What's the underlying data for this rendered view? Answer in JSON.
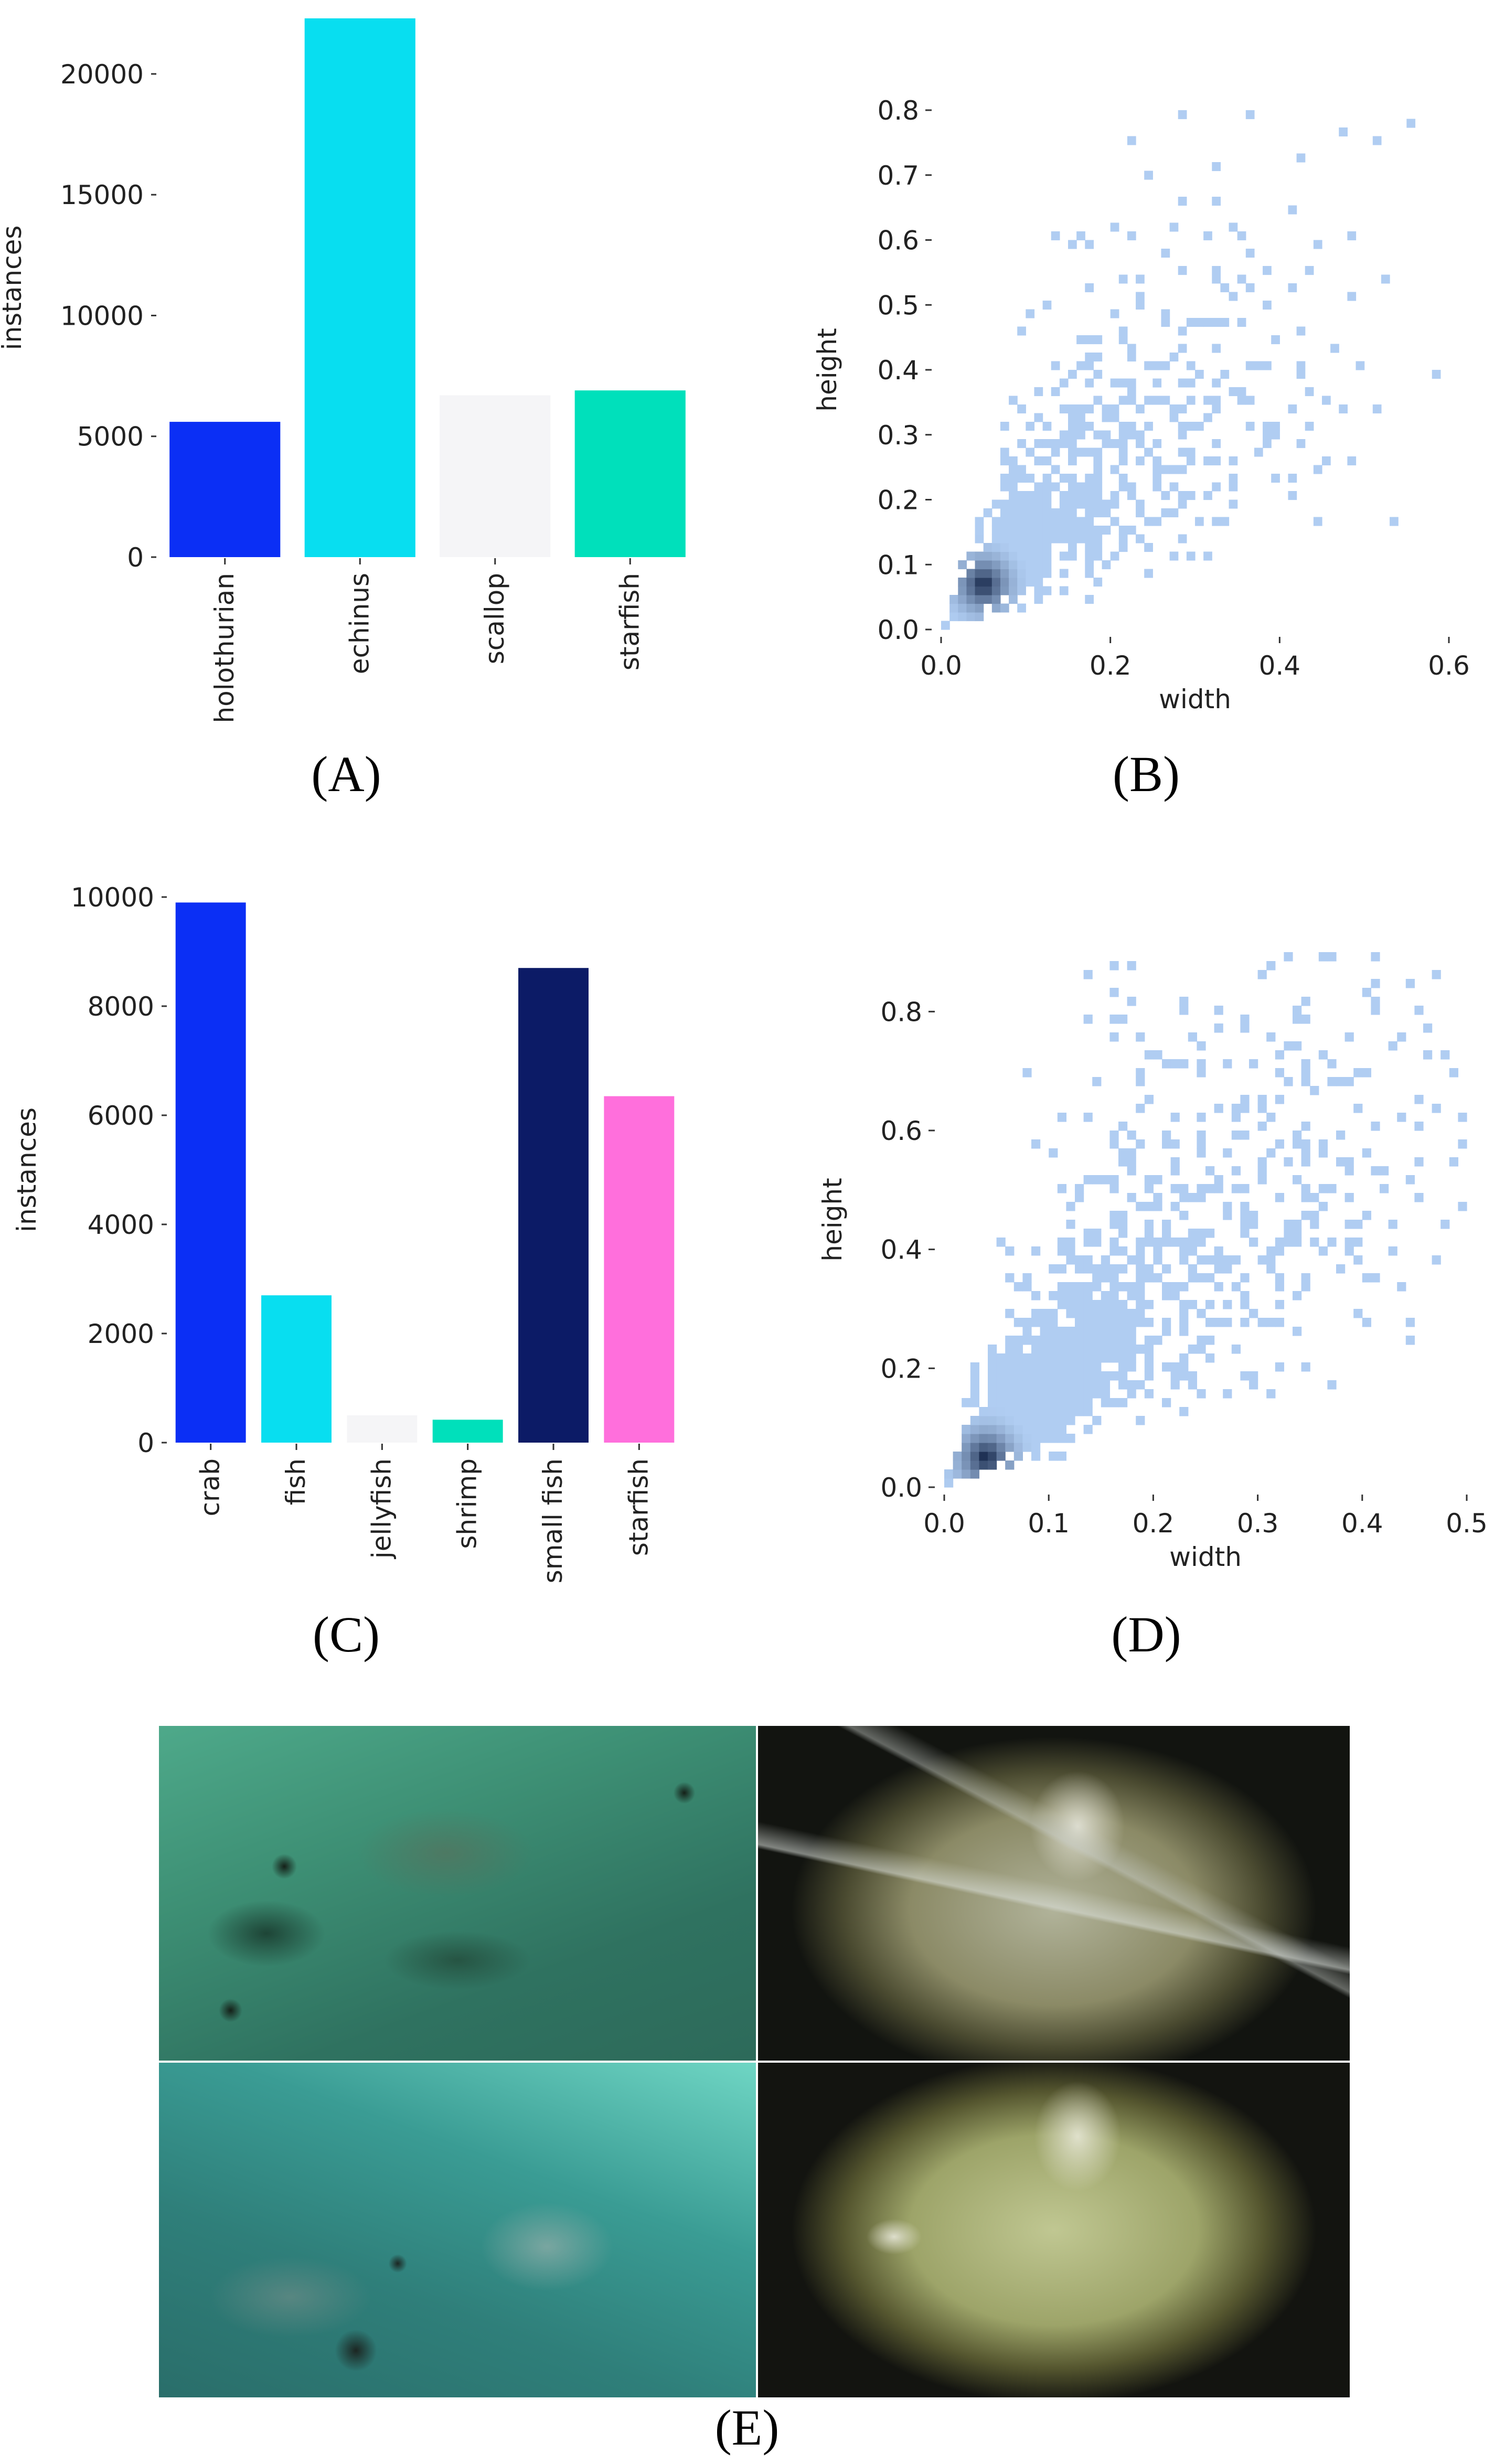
{
  "panel_labels": {
    "a": "(A)",
    "b": "(B)",
    "c": "(C)",
    "d": "(D)",
    "e": "(E)"
  },
  "chart_data": [
    {
      "id": "A",
      "type": "bar",
      "categories": [
        "holothurian",
        "echinus",
        "scallop",
        "starfish"
      ],
      "values": [
        5600,
        22300,
        6700,
        6900
      ],
      "colors": [
        "#0b2ff5",
        "#08def0",
        "#f5f5f7",
        "#00e0bb"
      ],
      "ylabel": "instances",
      "xlabel": "",
      "yticks": [
        0,
        5000,
        10000,
        15000,
        20000
      ],
      "ylim": [
        0,
        22300
      ],
      "grid": false
    },
    {
      "id": "B",
      "type": "heatmap",
      "xlabel": "width",
      "ylabel": "height",
      "xticks": [
        0.0,
        0.2,
        0.4,
        0.6
      ],
      "yticks": [
        0.0,
        0.1,
        0.2,
        0.3,
        0.4,
        0.5,
        0.6,
        0.7,
        0.8
      ],
      "xlim": [
        0.0,
        0.6
      ],
      "ylim": [
        0.0,
        0.8
      ],
      "colormap": [
        "#b0cdf2",
        "#0d1e40"
      ],
      "dense_core": {
        "width": 0.05,
        "height": 0.07
      },
      "grid": false
    },
    {
      "id": "C",
      "type": "bar",
      "categories": [
        "crab",
        "fish",
        "jellyfish",
        "shrimp",
        "small fish",
        "starfish"
      ],
      "values": [
        9900,
        2700,
        500,
        420,
        8700,
        6350
      ],
      "colors": [
        "#0b2ff5",
        "#08def0",
        "#f5f5f7",
        "#00e0bb",
        "#0c1b66",
        "#ff6fdc"
      ],
      "ylabel": "instances",
      "xlabel": "",
      "yticks": [
        0,
        2000,
        4000,
        6000,
        8000,
        10000
      ],
      "ylim": [
        0,
        10000
      ],
      "grid": false
    },
    {
      "id": "D",
      "type": "heatmap",
      "xlabel": "width",
      "ylabel": "height",
      "xticks": [
        0.0,
        0.1,
        0.2,
        0.3,
        0.4,
        0.5
      ],
      "yticks": [
        0.0,
        0.2,
        0.4,
        0.6,
        0.8
      ],
      "xlim": [
        0.0,
        0.5
      ],
      "ylim": [
        0.0,
        0.9
      ],
      "colormap": [
        "#b0cdf2",
        "#0d1e40"
      ],
      "dense_core": {
        "width": 0.04,
        "height": 0.05
      },
      "grid": false
    }
  ],
  "photos": [
    {
      "name": "reef-urchins-photo-1",
      "tint": "#3f8f78"
    },
    {
      "name": "fish-school-photo",
      "tint": "#9a9870"
    },
    {
      "name": "reef-urchins-photo-2",
      "tint": "#2f8a86"
    },
    {
      "name": "crab-photo",
      "tint": "#a5a86a"
    }
  ]
}
